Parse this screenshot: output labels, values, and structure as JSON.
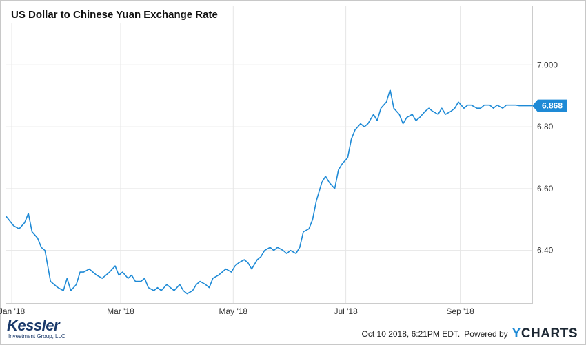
{
  "chart_data": {
    "type": "line",
    "title": "US Dollar to Chinese Yuan Exchange Rate",
    "x_ticks": [
      "Jan '18",
      "Mar '18",
      "May '18",
      "Jul '18",
      "Sep '18"
    ],
    "y_ticks": [
      "6.40",
      "6.60",
      "6.80",
      "7.000"
    ],
    "ylim": [
      6.23,
      7.19
    ],
    "xlim": [
      "2017-12-29",
      "2018-10-10"
    ],
    "grid": true,
    "last_value_label": "6.868",
    "series": [
      {
        "color": "#1e8ad6",
        "x": [
          "2017-12-29",
          "2018-01-02",
          "2018-01-05",
          "2018-01-08",
          "2018-01-10",
          "2018-01-12",
          "2018-01-15",
          "2018-01-17",
          "2018-01-19",
          "2018-01-22",
          "2018-01-24",
          "2018-01-26",
          "2018-01-29",
          "2018-01-31",
          "2018-02-02",
          "2018-02-05",
          "2018-02-07",
          "2018-02-09",
          "2018-02-12",
          "2018-02-14",
          "2018-02-16",
          "2018-02-19",
          "2018-02-21",
          "2018-02-23",
          "2018-02-26",
          "2018-02-28",
          "2018-03-02",
          "2018-03-05",
          "2018-03-07",
          "2018-03-09",
          "2018-03-12",
          "2018-03-14",
          "2018-03-16",
          "2018-03-19",
          "2018-03-21",
          "2018-03-23",
          "2018-03-26",
          "2018-03-28",
          "2018-03-30",
          "2018-04-02",
          "2018-04-04",
          "2018-04-06",
          "2018-04-09",
          "2018-04-11",
          "2018-04-13",
          "2018-04-16",
          "2018-04-18",
          "2018-04-20",
          "2018-04-23",
          "2018-04-25",
          "2018-04-27",
          "2018-04-30",
          "2018-05-02",
          "2018-05-04",
          "2018-05-07",
          "2018-05-09",
          "2018-05-11",
          "2018-05-14",
          "2018-05-16",
          "2018-05-18",
          "2018-05-21",
          "2018-05-23",
          "2018-05-25",
          "2018-05-28",
          "2018-05-30",
          "2018-06-01",
          "2018-06-04",
          "2018-06-06",
          "2018-06-08",
          "2018-06-11",
          "2018-06-13",
          "2018-06-15",
          "2018-06-18",
          "2018-06-20",
          "2018-06-22",
          "2018-06-25",
          "2018-06-27",
          "2018-06-29",
          "2018-07-02",
          "2018-07-04",
          "2018-07-06",
          "2018-07-09",
          "2018-07-11",
          "2018-07-13",
          "2018-07-16",
          "2018-07-18",
          "2018-07-20",
          "2018-07-23",
          "2018-07-25",
          "2018-07-27",
          "2018-07-30",
          "2018-08-01",
          "2018-08-03",
          "2018-08-06",
          "2018-08-08",
          "2018-08-10",
          "2018-08-13",
          "2018-08-15",
          "2018-08-17",
          "2018-08-20",
          "2018-08-22",
          "2018-08-24",
          "2018-08-27",
          "2018-08-29",
          "2018-08-31",
          "2018-09-03",
          "2018-09-05",
          "2018-09-07",
          "2018-09-10",
          "2018-09-12",
          "2018-09-14",
          "2018-09-17",
          "2018-09-19",
          "2018-09-21",
          "2018-09-24",
          "2018-09-26",
          "2018-09-28",
          "2018-10-01",
          "2018-10-03",
          "2018-10-05",
          "2018-10-08",
          "2018-10-10"
        ],
        "y": [
          6.51,
          6.48,
          6.47,
          6.49,
          6.52,
          6.46,
          6.44,
          6.41,
          6.4,
          6.3,
          6.29,
          6.28,
          6.27,
          6.31,
          6.27,
          6.29,
          6.33,
          6.33,
          6.34,
          6.33,
          6.32,
          6.31,
          6.32,
          6.33,
          6.35,
          6.32,
          6.33,
          6.31,
          6.32,
          6.3,
          6.3,
          6.31,
          6.28,
          6.27,
          6.28,
          6.27,
          6.29,
          6.28,
          6.27,
          6.29,
          6.27,
          6.26,
          6.27,
          6.29,
          6.3,
          6.29,
          6.28,
          6.31,
          6.32,
          6.33,
          6.34,
          6.33,
          6.35,
          6.36,
          6.37,
          6.36,
          6.34,
          6.37,
          6.38,
          6.4,
          6.41,
          6.4,
          6.41,
          6.4,
          6.39,
          6.4,
          6.39,
          6.41,
          6.46,
          6.47,
          6.5,
          6.56,
          6.62,
          6.64,
          6.62,
          6.6,
          6.66,
          6.68,
          6.7,
          6.76,
          6.79,
          6.81,
          6.8,
          6.81,
          6.84,
          6.82,
          6.86,
          6.88,
          6.92,
          6.86,
          6.84,
          6.81,
          6.83,
          6.84,
          6.82,
          6.83,
          6.85,
          6.86,
          6.85,
          6.84,
          6.86,
          6.84,
          6.85,
          6.86,
          6.88,
          6.86,
          6.87,
          6.87,
          6.86,
          6.86,
          6.87,
          6.87,
          6.86,
          6.87,
          6.86,
          6.87,
          6.87,
          6.87,
          6.868,
          6.868,
          6.868,
          6.868
        ]
      }
    ]
  },
  "footer": {
    "brand_name": "Kessler",
    "brand_sub": "Investment Group, LLC",
    "timestamp": "Oct 10 2018, 6:21PM EDT.",
    "powered_by": "Powered by",
    "provider_prefix": "Y",
    "provider_rest": "CHARTS"
  }
}
